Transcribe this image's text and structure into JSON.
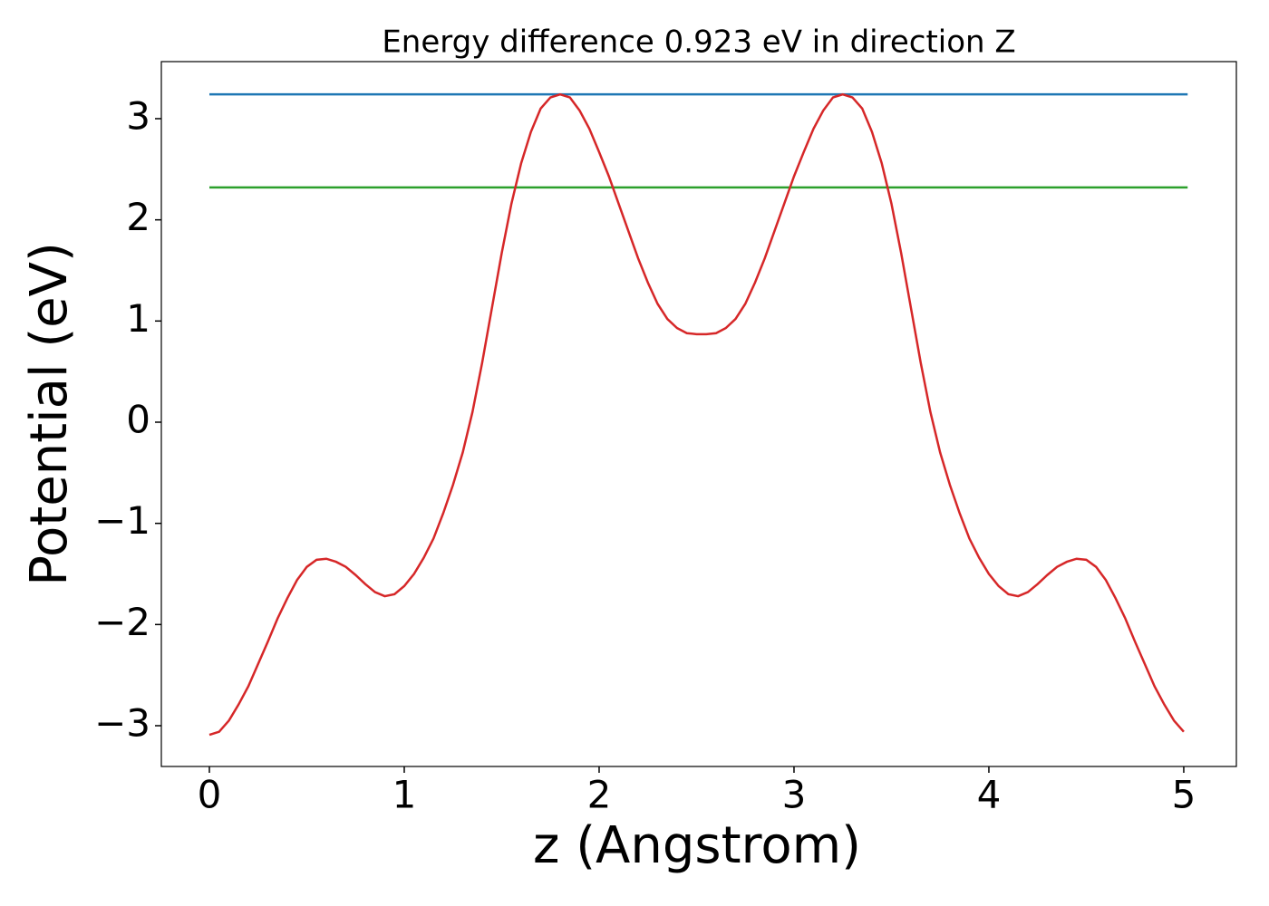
{
  "chart_data": {
    "type": "line",
    "title": "Energy difference 0.923 eV in direction Z",
    "xlabel": "z (Angstrom)",
    "ylabel": "Potential (eV)",
    "xlim": [
      -0.2465,
      5.27
    ],
    "ylim": [
      -3.403,
      3.564
    ],
    "xticks": [
      0,
      1,
      2,
      3,
      4,
      5
    ],
    "yticks": [
      {
        "value": -3,
        "label": "−3"
      },
      {
        "value": -2,
        "label": "−2"
      },
      {
        "value": -1,
        "label": "−1"
      },
      0,
      1,
      2,
      3
    ],
    "grid": false,
    "series": [
      {
        "color": "#1f77b4",
        "x": [
          0,
          5.02
        ],
        "values": [
          3.24,
          3.24
        ]
      },
      {
        "color": "#2ca02c",
        "x": [
          0,
          5.02
        ],
        "values": [
          2.32,
          2.32
        ]
      },
      {
        "color": "#d62728",
        "x": [
          0,
          0.05,
          0.1,
          0.15,
          0.2,
          0.25,
          0.3,
          0.35,
          0.4,
          0.45,
          0.5,
          0.55,
          0.6,
          0.65,
          0.7,
          0.75,
          0.8,
          0.85,
          0.9,
          0.95,
          1.0,
          1.05,
          1.1,
          1.15,
          1.2,
          1.25,
          1.3,
          1.35,
          1.4,
          1.45,
          1.5,
          1.55,
          1.6,
          1.65,
          1.7,
          1.75,
          1.8,
          1.85,
          1.9,
          1.95,
          2.0,
          2.05,
          2.1,
          2.15,
          2.2,
          2.25,
          2.3,
          2.35,
          2.4,
          2.45,
          2.5,
          2.55,
          2.6,
          2.65,
          2.7,
          2.75,
          2.8,
          2.85,
          2.9,
          2.95,
          3.0,
          3.05,
          3.1,
          3.15,
          3.2,
          3.25,
          3.3,
          3.35,
          3.4,
          3.45,
          3.5,
          3.55,
          3.6,
          3.65,
          3.7,
          3.75,
          3.8,
          3.85,
          3.9,
          3.95,
          4.0,
          4.05,
          4.1,
          4.15,
          4.2,
          4.25,
          4.3,
          4.35,
          4.4,
          4.45,
          4.5,
          4.55,
          4.6,
          4.65,
          4.7,
          4.75,
          4.8,
          4.85,
          4.9,
          4.95,
          5.0
        ],
        "values": [
          -3.09,
          -3.06,
          -2.95,
          -2.79,
          -2.61,
          -2.39,
          -2.17,
          -1.94,
          -1.74,
          -1.56,
          -1.43,
          -1.36,
          -1.35,
          -1.38,
          -1.43,
          -1.51,
          -1.6,
          -1.68,
          -1.72,
          -1.7,
          -1.62,
          -1.5,
          -1.34,
          -1.15,
          -0.9,
          -0.62,
          -0.3,
          0.1,
          0.59,
          1.13,
          1.67,
          2.16,
          2.56,
          2.87,
          3.1,
          3.21,
          3.24,
          3.21,
          3.08,
          2.9,
          2.67,
          2.43,
          2.16,
          1.89,
          1.62,
          1.38,
          1.17,
          1.02,
          0.93,
          0.88,
          0.87,
          0.87,
          0.88,
          0.93,
          1.02,
          1.17,
          1.38,
          1.62,
          1.89,
          2.16,
          2.43,
          2.67,
          2.9,
          3.08,
          3.21,
          3.24,
          3.21,
          3.1,
          2.87,
          2.56,
          2.16,
          1.67,
          1.13,
          0.59,
          0.1,
          -0.3,
          -0.62,
          -0.9,
          -1.15,
          -1.34,
          -1.5,
          -1.62,
          -1.7,
          -1.72,
          -1.68,
          -1.6,
          -1.51,
          -1.43,
          -1.38,
          -1.35,
          -1.36,
          -1.43,
          -1.56,
          -1.74,
          -1.94,
          -2.17,
          -2.39,
          -2.61,
          -2.79,
          -2.95,
          -3.06
        ]
      }
    ]
  }
}
